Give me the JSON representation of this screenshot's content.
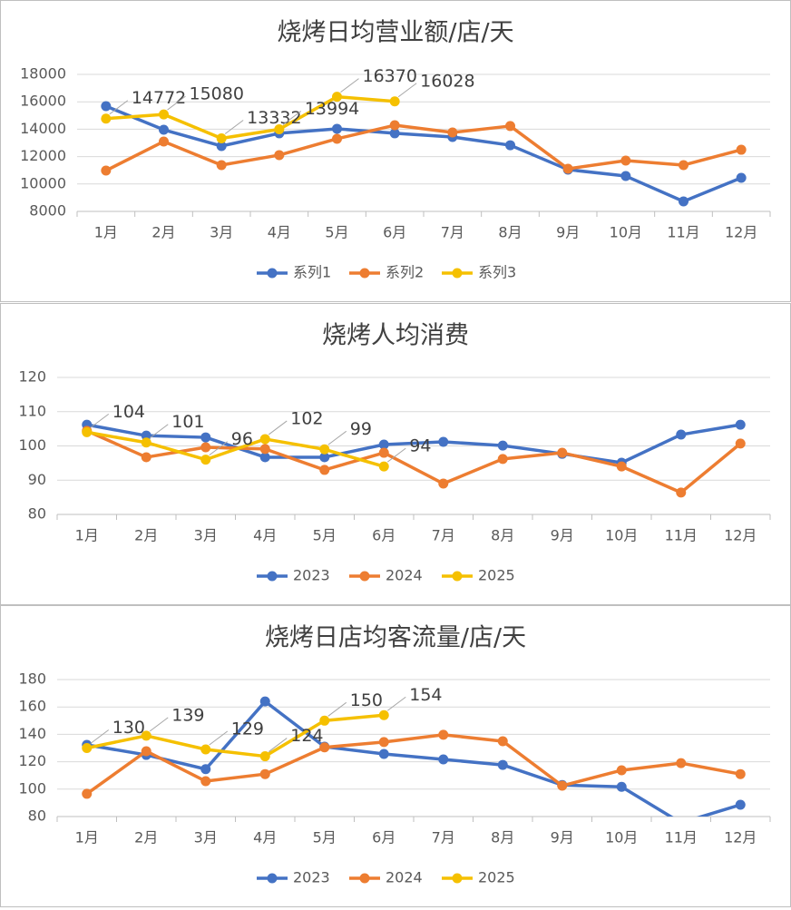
{
  "chart_data": [
    {
      "type": "line",
      "title": "烧烤日均营业额/店/天",
      "categories": [
        "1月",
        "2月",
        "3月",
        "4月",
        "5月",
        "6月",
        "7月",
        "8月",
        "9月",
        "10月",
        "11月",
        "12月"
      ],
      "series": [
        {
          "name": "系列1",
          "color": "#4472c4",
          "values": [
            15680,
            13960,
            12770,
            13700,
            14030,
            13700,
            13430,
            12830,
            11050,
            10580,
            8730,
            10450
          ]
        },
        {
          "name": "系列2",
          "color": "#ed7d31",
          "values": [
            10980,
            13100,
            11380,
            12110,
            13300,
            14290,
            13760,
            14230,
            11110,
            11710,
            11380,
            12500
          ]
        },
        {
          "name": "系列3",
          "color": "#f5c000",
          "values": [
            14772,
            15080,
            13332,
            13994,
            16370,
            16028,
            null,
            null,
            null,
            null,
            null,
            null
          ],
          "data_labels": true
        }
      ],
      "ylim": [
        8000,
        18000
      ],
      "yticks": [
        8000,
        10000,
        12000,
        14000,
        16000,
        18000
      ],
      "grid": true,
      "legend": "bottom"
    },
    {
      "type": "line",
      "title": "烧烤人均消费",
      "categories": [
        "1月",
        "2月",
        "3月",
        "4月",
        "5月",
        "6月",
        "7月",
        "8月",
        "9月",
        "10月",
        "11月",
        "12月"
      ],
      "series": [
        {
          "name": "2023",
          "color": "#4472c4",
          "values": [
            106.2,
            103,
            102.5,
            96.7,
            96.7,
            100.4,
            101.2,
            100.1,
            97.7,
            95.1,
            103.3,
            106.2
          ]
        },
        {
          "name": "2024",
          "color": "#ed7d31",
          "values": [
            104.4,
            96.7,
            99.6,
            99.1,
            93,
            98,
            89,
            96.2,
            98,
            94,
            86.4,
            100.7
          ]
        },
        {
          "name": "2025",
          "color": "#f5c000",
          "values": [
            104,
            101,
            96,
            102,
            99,
            94,
            null,
            null,
            null,
            null,
            null,
            null
          ],
          "data_labels": true
        }
      ],
      "ylim": [
        80,
        120
      ],
      "yticks": [
        80,
        90,
        100,
        110,
        120
      ],
      "grid": true,
      "legend": "bottom"
    },
    {
      "type": "line",
      "title": "烧烤日店均客流量/店/天",
      "categories": [
        "1月",
        "2月",
        "3月",
        "4月",
        "5月",
        "6月",
        "7月",
        "8月",
        "9月",
        "10月",
        "11月",
        "12月"
      ],
      "series": [
        {
          "name": "2023",
          "color": "#4472c4",
          "values": [
            132.3,
            125,
            114.6,
            164,
            131,
            125.7,
            121.7,
            117.7,
            103,
            101.7,
            75.4,
            88.6
          ]
        },
        {
          "name": "2024",
          "color": "#ed7d31",
          "values": [
            96.6,
            127.7,
            105.8,
            111,
            130.5,
            134.4,
            139.7,
            135,
            102.5,
            113.8,
            119,
            111
          ]
        },
        {
          "name": "2025",
          "color": "#f5c000",
          "values": [
            130,
            139,
            129,
            124,
            150,
            154,
            null,
            null,
            null,
            null,
            null,
            null
          ],
          "data_labels": true
        }
      ],
      "ylim": [
        80,
        180
      ],
      "yticks": [
        80,
        100,
        120,
        140,
        160,
        180
      ],
      "grid": true,
      "legend": "bottom"
    }
  ]
}
